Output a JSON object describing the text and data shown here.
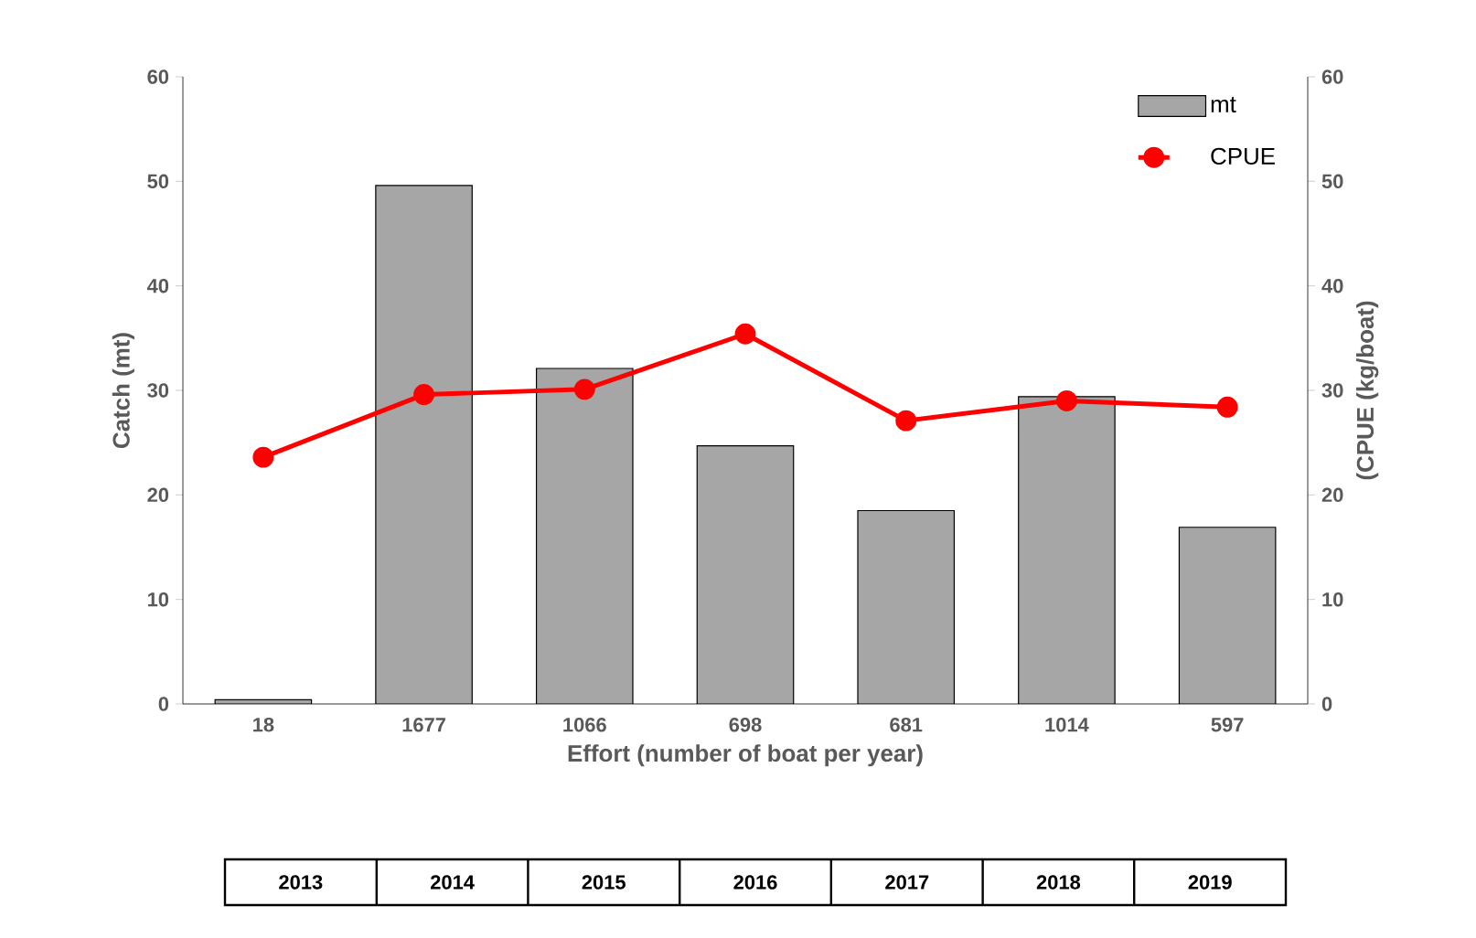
{
  "chart_data": {
    "type": "bar",
    "xlabel": "Effort (number of boat per year)",
    "ylabel": "Catch (mt)",
    "y2label": "(CPUE (kg/boat)",
    "categories": [
      "18",
      "1677",
      "1066",
      "698",
      "681",
      "1014",
      "597"
    ],
    "series": [
      {
        "name": "mt",
        "color": "#a6a6a6",
        "values": [
          0.4,
          49.6,
          32.1,
          24.7,
          18.5,
          29.4,
          16.9
        ]
      },
      {
        "name": "CPUE",
        "type": "line",
        "axis": "y2",
        "color": "#ff0000",
        "marker": "circle",
        "values": [
          23.6,
          29.6,
          30.1,
          35.4,
          27.1,
          29.0,
          28.4
        ]
      }
    ],
    "ylim": [
      0,
      60
    ],
    "yticks": [
      0,
      10,
      20,
      30,
      40,
      50,
      60
    ],
    "y2lim": [
      0,
      60
    ],
    "y2ticks": [
      0,
      10,
      20,
      30,
      40,
      50,
      60
    ],
    "legend": "top right",
    "annotations": [
      "2013",
      "2014",
      "2015",
      "2016",
      "2017",
      "2018",
      "2019"
    ]
  }
}
